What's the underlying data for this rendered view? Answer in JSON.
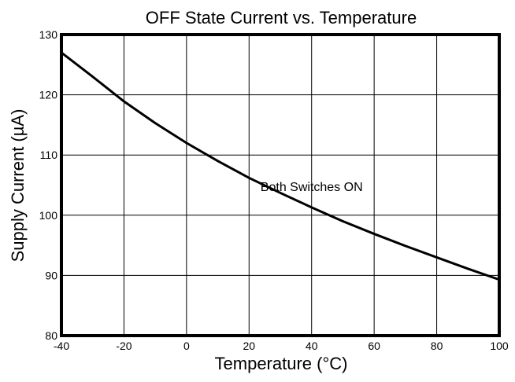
{
  "chart_data": {
    "type": "line",
    "title": "OFF State Current vs. Temperature",
    "xlabel": "Temperature (°C)",
    "ylabel": "Supply Current (µA)",
    "xlim": [
      -40,
      100
    ],
    "ylim": [
      80,
      130
    ],
    "xticks": [
      -40,
      -20,
      0,
      20,
      40,
      60,
      80,
      100
    ],
    "yticks": [
      80,
      90,
      100,
      110,
      120,
      130
    ],
    "xtick_labels": [
      "-40",
      "-20",
      "0",
      "20",
      "40",
      "60",
      "80",
      "100"
    ],
    "ytick_labels": [
      "80",
      "90",
      "100",
      "110",
      "120",
      "130"
    ],
    "grid": true,
    "series": [
      {
        "x": [
          -40,
          -30,
          -20,
          -10,
          0,
          10,
          20,
          30,
          40,
          50,
          60,
          70,
          80,
          90,
          100
        ],
        "values": [
          127.0,
          123.0,
          118.9,
          115.3,
          112.0,
          109.0,
          106.2,
          103.7,
          101.3,
          99.0,
          96.9,
          94.9,
          93.0,
          91.1,
          89.3
        ],
        "color": "#000000"
      }
    ],
    "annotations": [
      {
        "text": "Both Switches ON",
        "x": 40,
        "y": 104
      }
    ]
  }
}
